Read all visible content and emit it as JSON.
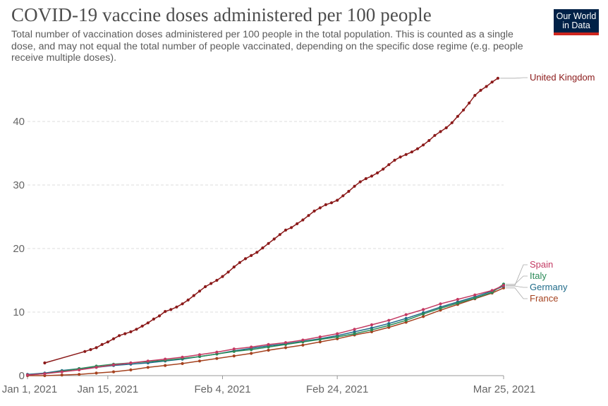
{
  "header": {
    "title": "COVID-19 vaccine doses administered per 100 people",
    "subtitle": "Total number of vaccination doses administered per 100 people in the total population. This is counted as a single dose, and may not equal the total number of people vaccinated, depending on the specific dose regime (e.g. people receive multiple doses).",
    "logo_line1": "Our World",
    "logo_line2": "in Data"
  },
  "colors": {
    "United Kingdom": "#8b1a1a",
    "Spain": "#c33962",
    "Italy": "#2a8a57",
    "Germany": "#1f6b8a",
    "France": "#a5421f",
    "grid": "#dddddd",
    "axis": "#999999"
  },
  "chart_data": {
    "type": "line",
    "title": "COVID-19 vaccine doses administered per 100 people",
    "x_start": "2021-01-01",
    "x_end": "2021-03-25",
    "x_ticks": [
      "Jan 1, 2021",
      "Jan 15, 2021",
      "Feb 4, 2021",
      "Feb 24, 2021",
      "Mar 25, 2021"
    ],
    "x_tick_dates": [
      "2021-01-01",
      "2021-01-15",
      "2021-02-04",
      "2021-02-24",
      "2021-03-25"
    ],
    "y_ticks": [
      0,
      10,
      20,
      30,
      40
    ],
    "ylim": [
      0,
      48
    ],
    "grid": "horizontal dashed",
    "series": [
      {
        "name": "United Kingdom",
        "points": [
          [
            "2021-01-04",
            2.0
          ],
          [
            "2021-01-11",
            3.8
          ],
          [
            "2021-01-12",
            4.1
          ],
          [
            "2021-01-13",
            4.4
          ],
          [
            "2021-01-14",
            4.9
          ],
          [
            "2021-01-15",
            5.3
          ],
          [
            "2021-01-16",
            5.8
          ],
          [
            "2021-01-17",
            6.3
          ],
          [
            "2021-01-18",
            6.6
          ],
          [
            "2021-01-19",
            6.9
          ],
          [
            "2021-01-20",
            7.3
          ],
          [
            "2021-01-21",
            7.8
          ],
          [
            "2021-01-22",
            8.3
          ],
          [
            "2021-01-23",
            8.9
          ],
          [
            "2021-01-24",
            9.4
          ],
          [
            "2021-01-25",
            10.1
          ],
          [
            "2021-01-26",
            10.4
          ],
          [
            "2021-01-27",
            10.8
          ],
          [
            "2021-01-28",
            11.3
          ],
          [
            "2021-01-29",
            11.9
          ],
          [
            "2021-01-30",
            12.6
          ],
          [
            "2021-01-31",
            13.3
          ],
          [
            "2021-02-01",
            14.0
          ],
          [
            "2021-02-02",
            14.5
          ],
          [
            "2021-02-03",
            15.0
          ],
          [
            "2021-02-04",
            15.6
          ],
          [
            "2021-02-05",
            16.3
          ],
          [
            "2021-02-06",
            17.1
          ],
          [
            "2021-02-07",
            17.8
          ],
          [
            "2021-02-08",
            18.4
          ],
          [
            "2021-02-09",
            18.9
          ],
          [
            "2021-02-10",
            19.4
          ],
          [
            "2021-02-11",
            20.1
          ],
          [
            "2021-02-12",
            20.8
          ],
          [
            "2021-02-13",
            21.5
          ],
          [
            "2021-02-14",
            22.2
          ],
          [
            "2021-02-15",
            22.9
          ],
          [
            "2021-02-16",
            23.3
          ],
          [
            "2021-02-17",
            23.9
          ],
          [
            "2021-02-18",
            24.5
          ],
          [
            "2021-02-19",
            25.2
          ],
          [
            "2021-02-20",
            25.9
          ],
          [
            "2021-02-21",
            26.4
          ],
          [
            "2021-02-22",
            26.9
          ],
          [
            "2021-02-23",
            27.2
          ],
          [
            "2021-02-24",
            27.6
          ],
          [
            "2021-02-25",
            28.3
          ],
          [
            "2021-02-26",
            29.0
          ],
          [
            "2021-02-27",
            29.8
          ],
          [
            "2021-02-28",
            30.5
          ],
          [
            "2021-03-01",
            31.0
          ],
          [
            "2021-03-02",
            31.4
          ],
          [
            "2021-03-03",
            31.9
          ],
          [
            "2021-03-04",
            32.5
          ],
          [
            "2021-03-05",
            33.2
          ],
          [
            "2021-03-06",
            33.9
          ],
          [
            "2021-03-07",
            34.4
          ],
          [
            "2021-03-08",
            34.8
          ],
          [
            "2021-03-09",
            35.2
          ],
          [
            "2021-03-10",
            35.7
          ],
          [
            "2021-03-11",
            36.3
          ],
          [
            "2021-03-12",
            37.0
          ],
          [
            "2021-03-13",
            37.8
          ],
          [
            "2021-03-14",
            38.4
          ],
          [
            "2021-03-15",
            39.0
          ],
          [
            "2021-03-16",
            39.8
          ],
          [
            "2021-03-17",
            40.8
          ],
          [
            "2021-03-18",
            41.8
          ],
          [
            "2021-03-19",
            42.9
          ],
          [
            "2021-03-20",
            44.1
          ],
          [
            "2021-03-21",
            44.9
          ],
          [
            "2021-03-22",
            45.5
          ],
          [
            "2021-03-23",
            46.2
          ],
          [
            "2021-03-24",
            46.8
          ]
        ]
      },
      {
        "name": "Spain",
        "points": [
          [
            "2021-01-01",
            0.1
          ],
          [
            "2021-01-04",
            0.3
          ],
          [
            "2021-01-07",
            0.6
          ],
          [
            "2021-01-10",
            0.9
          ],
          [
            "2021-01-13",
            1.3
          ],
          [
            "2021-01-16",
            1.7
          ],
          [
            "2021-01-19",
            2.0
          ],
          [
            "2021-01-22",
            2.3
          ],
          [
            "2021-01-25",
            2.6
          ],
          [
            "2021-01-28",
            2.9
          ],
          [
            "2021-01-31",
            3.3
          ],
          [
            "2021-02-03",
            3.7
          ],
          [
            "2021-02-06",
            4.2
          ],
          [
            "2021-02-09",
            4.5
          ],
          [
            "2021-02-12",
            4.9
          ],
          [
            "2021-02-15",
            5.2
          ],
          [
            "2021-02-18",
            5.6
          ],
          [
            "2021-02-21",
            6.1
          ],
          [
            "2021-02-24",
            6.6
          ],
          [
            "2021-02-27",
            7.3
          ],
          [
            "2021-03-02",
            8.0
          ],
          [
            "2021-03-05",
            8.7
          ],
          [
            "2021-03-08",
            9.6
          ],
          [
            "2021-03-11",
            10.4
          ],
          [
            "2021-03-14",
            11.3
          ],
          [
            "2021-03-17",
            12.0
          ],
          [
            "2021-03-20",
            12.7
          ],
          [
            "2021-03-23",
            13.4
          ],
          [
            "2021-03-25",
            14.2
          ]
        ]
      },
      {
        "name": "Italy",
        "points": [
          [
            "2021-01-01",
            0.1
          ],
          [
            "2021-01-04",
            0.3
          ],
          [
            "2021-01-07",
            0.7
          ],
          [
            "2021-01-10",
            1.1
          ],
          [
            "2021-01-13",
            1.5
          ],
          [
            "2021-01-16",
            1.8
          ],
          [
            "2021-01-19",
            2.0
          ],
          [
            "2021-01-22",
            2.2
          ],
          [
            "2021-01-25",
            2.4
          ],
          [
            "2021-01-28",
            2.7
          ],
          [
            "2021-01-31",
            3.0
          ],
          [
            "2021-02-03",
            3.4
          ],
          [
            "2021-02-06",
            3.8
          ],
          [
            "2021-02-09",
            4.1
          ],
          [
            "2021-02-12",
            4.5
          ],
          [
            "2021-02-15",
            4.9
          ],
          [
            "2021-02-18",
            5.3
          ],
          [
            "2021-02-21",
            5.7
          ],
          [
            "2021-02-24",
            6.1
          ],
          [
            "2021-02-27",
            6.6
          ],
          [
            "2021-03-02",
            7.2
          ],
          [
            "2021-03-05",
            7.9
          ],
          [
            "2021-03-08",
            8.7
          ],
          [
            "2021-03-11",
            9.7
          ],
          [
            "2021-03-14",
            10.6
          ],
          [
            "2021-03-17",
            11.4
          ],
          [
            "2021-03-20",
            12.2
          ],
          [
            "2021-03-23",
            13.1
          ],
          [
            "2021-03-25",
            14.4
          ]
        ]
      },
      {
        "name": "Germany",
        "points": [
          [
            "2021-01-01",
            0.2
          ],
          [
            "2021-01-04",
            0.4
          ],
          [
            "2021-01-07",
            0.8
          ],
          [
            "2021-01-10",
            1.1
          ],
          [
            "2021-01-13",
            1.3
          ],
          [
            "2021-01-16",
            1.6
          ],
          [
            "2021-01-19",
            1.8
          ],
          [
            "2021-01-22",
            2.0
          ],
          [
            "2021-01-25",
            2.3
          ],
          [
            "2021-01-28",
            2.6
          ],
          [
            "2021-01-31",
            3.0
          ],
          [
            "2021-02-03",
            3.4
          ],
          [
            "2021-02-06",
            3.9
          ],
          [
            "2021-02-09",
            4.3
          ],
          [
            "2021-02-12",
            4.7
          ],
          [
            "2021-02-15",
            5.0
          ],
          [
            "2021-02-18",
            5.4
          ],
          [
            "2021-02-21",
            5.8
          ],
          [
            "2021-02-24",
            6.3
          ],
          [
            "2021-02-27",
            6.9
          ],
          [
            "2021-03-02",
            7.5
          ],
          [
            "2021-03-05",
            8.2
          ],
          [
            "2021-03-08",
            9.0
          ],
          [
            "2021-03-11",
            9.9
          ],
          [
            "2021-03-14",
            10.8
          ],
          [
            "2021-03-17",
            11.6
          ],
          [
            "2021-03-20",
            12.4
          ],
          [
            "2021-03-23",
            13.3
          ],
          [
            "2021-03-25",
            14.1
          ]
        ]
      },
      {
        "name": "France",
        "points": [
          [
            "2021-01-01",
            0.0
          ],
          [
            "2021-01-04",
            0.0
          ],
          [
            "2021-01-07",
            0.1
          ],
          [
            "2021-01-10",
            0.2
          ],
          [
            "2021-01-13",
            0.4
          ],
          [
            "2021-01-16",
            0.6
          ],
          [
            "2021-01-19",
            0.9
          ],
          [
            "2021-01-22",
            1.3
          ],
          [
            "2021-01-25",
            1.6
          ],
          [
            "2021-01-28",
            1.9
          ],
          [
            "2021-01-31",
            2.3
          ],
          [
            "2021-02-03",
            2.7
          ],
          [
            "2021-02-06",
            3.1
          ],
          [
            "2021-02-09",
            3.5
          ],
          [
            "2021-02-12",
            4.0
          ],
          [
            "2021-02-15",
            4.4
          ],
          [
            "2021-02-18",
            4.8
          ],
          [
            "2021-02-21",
            5.3
          ],
          [
            "2021-02-24",
            5.8
          ],
          [
            "2021-02-27",
            6.4
          ],
          [
            "2021-03-02",
            6.9
          ],
          [
            "2021-03-05",
            7.6
          ],
          [
            "2021-03-08",
            8.4
          ],
          [
            "2021-03-11",
            9.3
          ],
          [
            "2021-03-14",
            10.3
          ],
          [
            "2021-03-17",
            11.2
          ],
          [
            "2021-03-20",
            12.1
          ],
          [
            "2021-03-23",
            13.0
          ],
          [
            "2021-03-25",
            13.8
          ]
        ]
      }
    ]
  }
}
